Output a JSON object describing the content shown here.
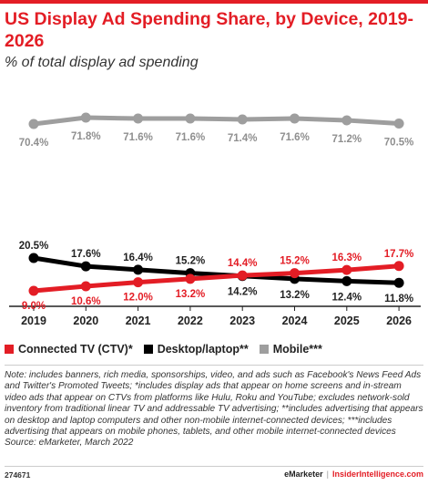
{
  "title": "US Display Ad Spending Share, by Device, 2019-2026",
  "subtitle": "% of total display ad spending",
  "chart_data": {
    "type": "line",
    "categories": [
      "2019",
      "2020",
      "2021",
      "2022",
      "2023",
      "2024",
      "2025",
      "2026"
    ],
    "series": [
      {
        "name": "Connected TV (CTV)*",
        "color": "#e31d25",
        "values": [
          9.0,
          10.6,
          12.0,
          13.2,
          14.4,
          15.2,
          16.3,
          17.7
        ],
        "labels": [
          "9.0%",
          "10.6%",
          "12.0%",
          "13.2%",
          "14.4%",
          "15.2%",
          "16.3%",
          "17.7%"
        ]
      },
      {
        "name": "Desktop/laptop**",
        "color": "#000000",
        "values": [
          20.5,
          17.6,
          16.4,
          15.2,
          14.2,
          13.2,
          12.4,
          11.8
        ],
        "labels": [
          "20.5%",
          "17.6%",
          "16.4%",
          "15.2%",
          "14.2%",
          "13.2%",
          "12.4%",
          "11.8%"
        ]
      },
      {
        "name": "Mobile***",
        "color": "#9e9e9e",
        "values": [
          70.4,
          71.8,
          71.6,
          71.6,
          71.4,
          71.6,
          71.2,
          70.5
        ],
        "labels": [
          "70.4%",
          "71.8%",
          "71.6%",
          "71.6%",
          "71.4%",
          "71.6%",
          "71.2%",
          "70.5%"
        ]
      }
    ],
    "axis_break": true,
    "grid": false,
    "legend_position": "bottom-left"
  },
  "legend": {
    "items": [
      {
        "label": "Connected TV (CTV)*",
        "color": "#e31d25"
      },
      {
        "label": "Desktop/laptop**",
        "color": "#000000"
      },
      {
        "label": "Mobile***",
        "color": "#9e9e9e"
      }
    ]
  },
  "note": "Note: includes banners, rich media, sponsorships, video, and ads such as Facebook's News Feed Ads and Twitter's Promoted Tweets; *includes display ads that appear on home screens and in-stream video ads that appear on CTVs from platforms like Hulu, Roku and YouTube; excludes network-sold inventory from traditional linear TV and addressable TV advertising; **includes advertising that appears on desktop and laptop computers and other non-mobile internet-connected devices; ***includes advertising that appears on mobile phones, tablets, and other mobile internet-connected devices",
  "source": "Source: eMarketer, March 2022",
  "footer": {
    "chart_id": "274671",
    "brand_left": "eMarketer",
    "separator": "|",
    "brand_right": "InsiderIntelligence.com"
  }
}
